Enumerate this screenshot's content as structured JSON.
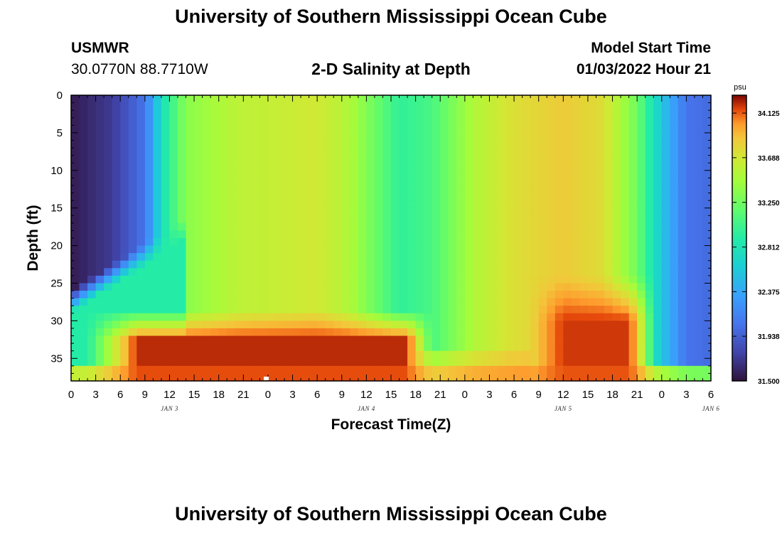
{
  "header": {
    "title": "University of Southern Mississippi Ocean Cube",
    "station": "USMWR",
    "coords": "30.0770N  88.7710W",
    "plot_title": "2-D Salinity at Depth",
    "model_start_label": "Model Start Time",
    "model_start_value": "01/03/2022 Hour 21",
    "footer_title": "University of Southern Mississippi Ocean Cube"
  },
  "chart_data": {
    "type": "heatmap",
    "title": "2-D Salinity at Depth",
    "xlabel": "Forecast Time(Z)",
    "ylabel": "Depth (ft)",
    "x_tick_labels": [
      "0",
      "3",
      "6",
      "9",
      "12",
      "15",
      "18",
      "21",
      "0",
      "3",
      "6",
      "9",
      "12",
      "15",
      "18",
      "21",
      "0",
      "3",
      "6",
      "9",
      "12",
      "15",
      "18",
      "21",
      "0",
      "3",
      "6"
    ],
    "date_labels": [
      {
        "text": "JAN 3",
        "tick_index": 4
      },
      {
        "text": "JAN 4",
        "tick_index": 12
      },
      {
        "text": "JAN 5",
        "tick_index": 20
      },
      {
        "text": "JAN 6",
        "tick_index": 26
      }
    ],
    "y_tick_labels": [
      "0",
      "5",
      "10",
      "15",
      "20",
      "25",
      "30",
      "35"
    ],
    "y_ticks": [
      0,
      5,
      10,
      15,
      20,
      25,
      30,
      35
    ],
    "ylim": [
      0,
      38
    ],
    "x_range_hours": [
      0,
      78
    ],
    "colorbar": {
      "unit": "psu",
      "ticks": [
        "34.125",
        "33.688",
        "33.250",
        "32.812",
        "32.375",
        "31.938",
        "31.500"
      ],
      "range": [
        31.5,
        34.3
      ]
    },
    "grid": false
  }
}
